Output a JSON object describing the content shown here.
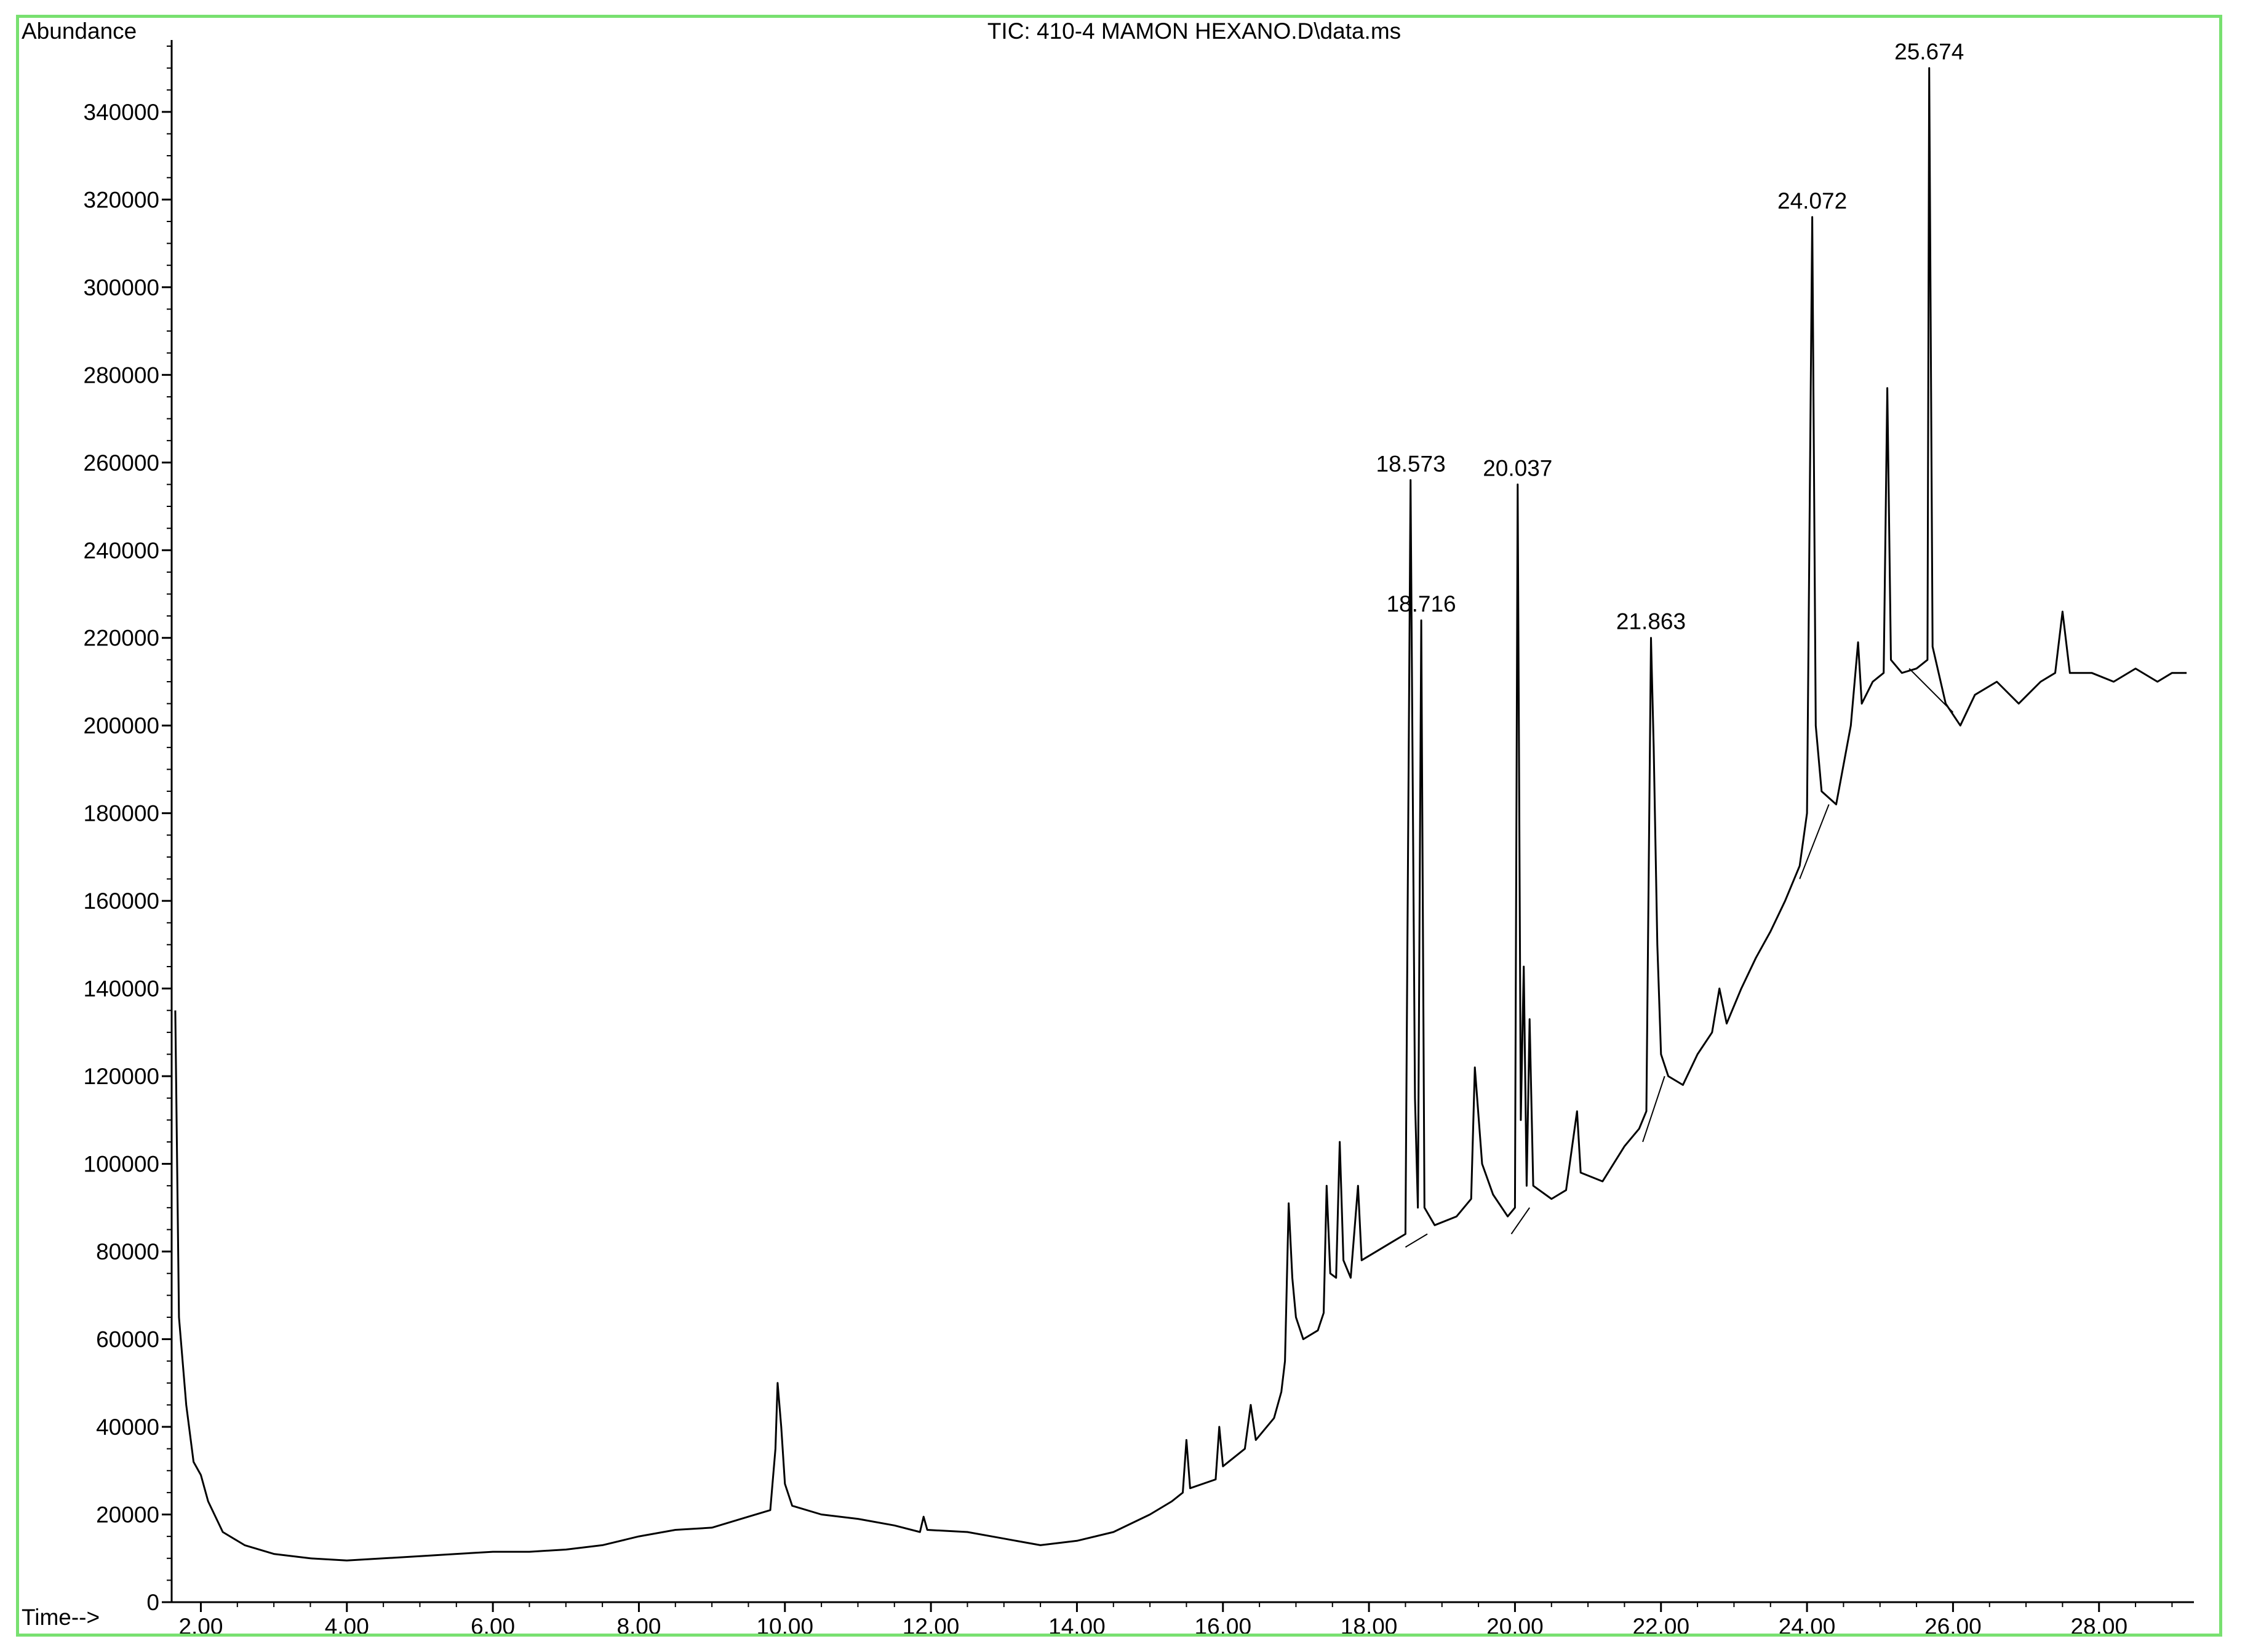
{
  "chart_data": {
    "type": "line",
    "title": "TIC: 410-4 MAMON HEXANO.D\\data.ms",
    "ylabel": "Abundance",
    "xlabel": "Time-->",
    "xlim": [
      1.6,
      29.3
    ],
    "ylim": [
      0,
      355000
    ],
    "grid": false,
    "x_ticks": [
      2,
      4,
      6,
      8,
      10,
      12,
      14,
      16,
      18,
      20,
      22,
      24,
      26,
      28
    ],
    "x_tick_labels": [
      "2.00",
      "4.00",
      "6.00",
      "8.00",
      "10.00",
      "12.00",
      "14.00",
      "16.00",
      "18.00",
      "20.00",
      "22.00",
      "24.00",
      "26.00",
      "28.00"
    ],
    "y_ticks": [
      0,
      20000,
      40000,
      60000,
      80000,
      100000,
      120000,
      140000,
      160000,
      180000,
      200000,
      220000,
      240000,
      260000,
      280000,
      300000,
      320000,
      340000
    ],
    "y_tick_labels": [
      "0",
      "20000",
      "40000",
      "60000",
      "80000",
      "100000",
      "120000",
      "140000",
      "160000",
      "180000",
      "200000",
      "220000",
      "240000",
      "260000",
      "280000",
      "300000",
      "320000",
      "340000"
    ],
    "baseline": [
      [
        1.65,
        135000
      ],
      [
        1.7,
        65000
      ],
      [
        1.8,
        45000
      ],
      [
        1.9,
        32000
      ],
      [
        2.0,
        29000
      ],
      [
        2.1,
        23000
      ],
      [
        2.3,
        16000
      ],
      [
        2.6,
        13000
      ],
      [
        3.0,
        11000
      ],
      [
        3.5,
        10000
      ],
      [
        4.0,
        9500
      ],
      [
        4.5,
        10000
      ],
      [
        5.0,
        10500
      ],
      [
        5.5,
        11000
      ],
      [
        6.0,
        11500
      ],
      [
        6.5,
        11500
      ],
      [
        7.0,
        12000
      ],
      [
        7.5,
        13000
      ],
      [
        8.0,
        15000
      ],
      [
        8.5,
        16500
      ],
      [
        9.0,
        17000
      ],
      [
        9.5,
        19500
      ],
      [
        9.8,
        21000
      ],
      [
        9.87,
        35000
      ],
      [
        9.9,
        50000
      ],
      [
        9.95,
        40000
      ],
      [
        10.0,
        27000
      ],
      [
        10.1,
        22000
      ],
      [
        10.5,
        20000
      ],
      [
        11.0,
        19000
      ],
      [
        11.5,
        17500
      ],
      [
        11.85,
        16000
      ],
      [
        11.9,
        19500
      ],
      [
        11.95,
        16500
      ],
      [
        12.5,
        16000
      ],
      [
        13.0,
        14500
      ],
      [
        13.5,
        13000
      ],
      [
        14.0,
        14000
      ],
      [
        14.5,
        16000
      ],
      [
        15.0,
        20000
      ],
      [
        15.3,
        23000
      ],
      [
        15.45,
        25000
      ],
      [
        15.5,
        37000
      ],
      [
        15.55,
        26000
      ],
      [
        15.9,
        28000
      ],
      [
        15.95,
        40000
      ],
      [
        16.0,
        31000
      ],
      [
        16.3,
        35000
      ],
      [
        16.38,
        45000
      ],
      [
        16.45,
        37000
      ],
      [
        16.7,
        42000
      ],
      [
        16.8,
        48000
      ],
      [
        16.85,
        55000
      ],
      [
        16.9,
        91000
      ],
      [
        16.95,
        74000
      ],
      [
        17.0,
        65000
      ],
      [
        17.1,
        60000
      ],
      [
        17.3,
        62000
      ],
      [
        17.38,
        66000
      ],
      [
        17.42,
        95000
      ],
      [
        17.47,
        75000
      ],
      [
        17.55,
        74000
      ],
      [
        17.6,
        105000
      ],
      [
        17.65,
        78000
      ],
      [
        17.75,
        74000
      ],
      [
        17.85,
        95000
      ],
      [
        17.9,
        78000
      ],
      [
        18.1,
        80000
      ],
      [
        18.3,
        82000
      ],
      [
        18.5,
        84000
      ],
      [
        18.57,
        256000
      ],
      [
        18.63,
        115000
      ],
      [
        18.67,
        90000
      ],
      [
        18.716,
        224000
      ],
      [
        18.76,
        90000
      ],
      [
        18.9,
        86000
      ],
      [
        19.2,
        88000
      ],
      [
        19.4,
        92000
      ],
      [
        19.45,
        122000
      ],
      [
        19.55,
        100000
      ],
      [
        19.7,
        93000
      ],
      [
        19.9,
        88000
      ],
      [
        20.0,
        90000
      ],
      [
        20.037,
        255000
      ],
      [
        20.08,
        110000
      ],
      [
        20.12,
        145000
      ],
      [
        20.16,
        95000
      ],
      [
        20.2,
        133000
      ],
      [
        20.25,
        95000
      ],
      [
        20.5,
        92000
      ],
      [
        20.7,
        94000
      ],
      [
        20.85,
        112000
      ],
      [
        20.9,
        98000
      ],
      [
        21.2,
        96000
      ],
      [
        21.5,
        104000
      ],
      [
        21.7,
        108000
      ],
      [
        21.8,
        112000
      ],
      [
        21.863,
        220000
      ],
      [
        21.9,
        195000
      ],
      [
        21.95,
        150000
      ],
      [
        22.0,
        125000
      ],
      [
        22.1,
        120000
      ],
      [
        22.3,
        118000
      ],
      [
        22.5,
        125000
      ],
      [
        22.7,
        130000
      ],
      [
        22.8,
        140000
      ],
      [
        22.9,
        132000
      ],
      [
        23.1,
        140000
      ],
      [
        23.3,
        147000
      ],
      [
        23.5,
        153000
      ],
      [
        23.7,
        160000
      ],
      [
        23.9,
        168000
      ],
      [
        24.0,
        180000
      ],
      [
        24.072,
        316000
      ],
      [
        24.12,
        200000
      ],
      [
        24.2,
        185000
      ],
      [
        24.4,
        182000
      ],
      [
        24.6,
        200000
      ],
      [
        24.7,
        219000
      ],
      [
        24.75,
        205000
      ],
      [
        24.9,
        210000
      ],
      [
        25.05,
        212000
      ],
      [
        25.1,
        277000
      ],
      [
        25.15,
        215000
      ],
      [
        25.3,
        212000
      ],
      [
        25.5,
        213000
      ],
      [
        25.65,
        215000
      ],
      [
        25.674,
        350000
      ],
      [
        25.72,
        218000
      ],
      [
        25.9,
        205000
      ],
      [
        26.1,
        200000
      ],
      [
        26.3,
        207000
      ],
      [
        26.6,
        210000
      ],
      [
        26.9,
        205000
      ],
      [
        27.2,
        210000
      ],
      [
        27.4,
        212000
      ],
      [
        27.5,
        226000
      ],
      [
        27.6,
        212000
      ],
      [
        27.9,
        212000
      ],
      [
        28.2,
        210000
      ],
      [
        28.5,
        213000
      ],
      [
        28.8,
        210000
      ],
      [
        29.0,
        212000
      ],
      [
        29.2,
        212000
      ]
    ],
    "peaks": [
      {
        "label": "18.573",
        "x": 18.573,
        "y": 256000
      },
      {
        "label": "18.716",
        "x": 18.716,
        "y": 224000
      },
      {
        "label": "20.037",
        "x": 20.037,
        "y": 255000
      },
      {
        "label": "21.863",
        "x": 21.863,
        "y": 220000
      },
      {
        "label": "24.072",
        "x": 24.072,
        "y": 316000
      },
      {
        "label": "25.674",
        "x": 25.674,
        "y": 350000
      }
    ],
    "integration_baselines": [
      [
        [
          18.5,
          81000
        ],
        [
          18.8,
          84000
        ]
      ],
      [
        [
          19.95,
          84000
        ],
        [
          20.2,
          90000
        ]
      ],
      [
        [
          21.75,
          105000
        ],
        [
          22.05,
          120000
        ]
      ],
      [
        [
          23.9,
          165000
        ],
        [
          24.3,
          182000
        ]
      ],
      [
        [
          25.4,
          213000
        ],
        [
          26.0,
          203000
        ]
      ]
    ],
    "line_color": "#000000",
    "frame_color": "#78e070"
  }
}
